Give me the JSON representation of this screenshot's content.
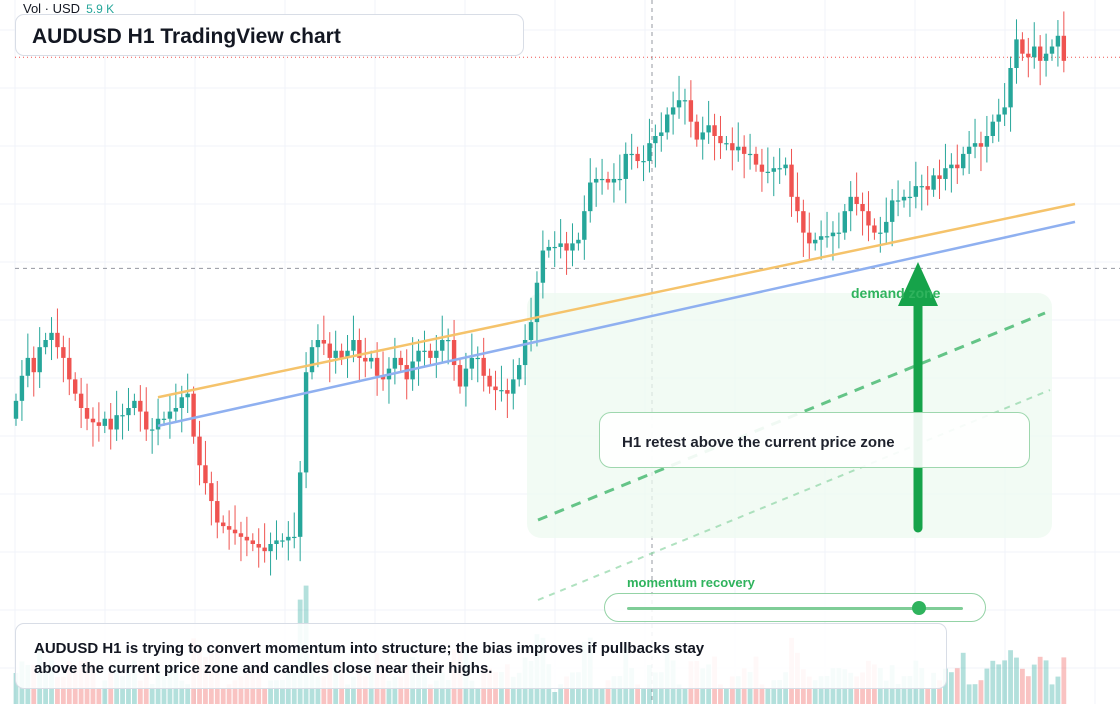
{
  "window": {
    "title": "AUDUSD H1 TradingView chart"
  },
  "volume": {
    "label": "Vol · USD",
    "value": "5.9 K"
  },
  "callout": {
    "text": "H1 retest above the current price zone"
  },
  "zone": {
    "label": "demand zone"
  },
  "momentum": {
    "label": "momentum recovery",
    "level": 0.87
  },
  "summary": {
    "text": "AUDUSD H1 is trying to convert momentum into structure; the bias improves if pullbacks stay above the current price zone and candles close near their highs."
  },
  "colors": {
    "up": "#26a69a",
    "down": "#ef5350",
    "accent": "#2fb35d",
    "ma_fast": "#f5c36b",
    "ma_slow": "#8fb0f0"
  },
  "chart_data": {
    "type": "candlestick",
    "symbol": "AUDUSD",
    "timeframe": "H1",
    "series_close": [
      0.78,
      0.85,
      0.9,
      0.86,
      0.93,
      0.95,
      0.97,
      0.93,
      0.9,
      0.84,
      0.8,
      0.76,
      0.73,
      0.72,
      0.71,
      0.73,
      0.7,
      0.74,
      0.74,
      0.76,
      0.78,
      0.75,
      0.7,
      0.7,
      0.73,
      0.73,
      0.75,
      0.76,
      0.79,
      0.8,
      0.68,
      0.6,
      0.55,
      0.5,
      0.44,
      0.43,
      0.42,
      0.41,
      0.4,
      0.39,
      0.38,
      0.37,
      0.36,
      0.38,
      0.39,
      0.39,
      0.4,
      0.4,
      0.58,
      0.86,
      0.93,
      0.95,
      0.94,
      0.9,
      0.92,
      0.9,
      0.92,
      0.95,
      0.9,
      0.89,
      0.9,
      0.85,
      0.84,
      0.87,
      0.9,
      0.88,
      0.84,
      0.89,
      0.92,
      0.92,
      0.9,
      0.92,
      0.95,
      0.95,
      0.88,
      0.82,
      0.87,
      0.9,
      0.9,
      0.85,
      0.82,
      0.81,
      0.81,
      0.8,
      0.84,
      0.88,
      0.95,
      1.0,
      1.11,
      1.2,
      1.21,
      1.21,
      1.22,
      1.2,
      1.22,
      1.23,
      1.31,
      1.39,
      1.4,
      1.4,
      1.39,
      1.4,
      1.4,
      1.47,
      1.47,
      1.45,
      1.45,
      1.5,
      1.52,
      1.53,
      1.58,
      1.6,
      1.62,
      1.62,
      1.56,
      1.51,
      1.53,
      1.55,
      1.52,
      1.5,
      1.5,
      1.48,
      1.49,
      1.47,
      1.47,
      1.44,
      1.42,
      1.42,
      1.43,
      1.43,
      1.44,
      1.35,
      1.31,
      1.25,
      1.22,
      1.23,
      1.24,
      1.24,
      1.25,
      1.25,
      1.31,
      1.35,
      1.33,
      1.31,
      1.27,
      1.25,
      1.25,
      1.28,
      1.34,
      1.34,
      1.35,
      1.35,
      1.38,
      1.38,
      1.37,
      1.41,
      1.4,
      1.43,
      1.44,
      1.43,
      1.47,
      1.49,
      1.5,
      1.49,
      1.52,
      1.56,
      1.58,
      1.6,
      1.71,
      1.79,
      1.75,
      1.74,
      1.77,
      1.73,
      1.75,
      1.77,
      1.8,
      1.73
    ],
    "ma_fast": [
      0.79,
      1.33
    ],
    "ma_slow": [
      0.71,
      1.28
    ],
    "horizontal_level": 1.15,
    "current_price_level": 1.74,
    "ylim": [
      0.0,
      1.9
    ]
  }
}
